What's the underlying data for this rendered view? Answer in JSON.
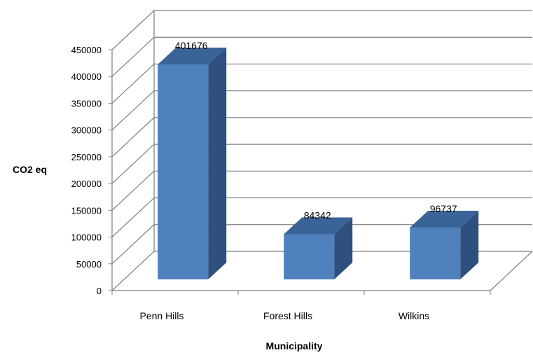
{
  "chart_data": {
    "type": "bar",
    "title": "",
    "xlabel": "Municipality",
    "ylabel": "CO2 eq",
    "categories": [
      "Penn Hills",
      "Forest Hills",
      "Wilkins"
    ],
    "values": [
      401676,
      84342,
      96737
    ],
    "data_labels": [
      "401676",
      "84342",
      "96737"
    ],
    "ylim": [
      0,
      450000
    ],
    "yticks": [
      0,
      50000,
      100000,
      150000,
      200000,
      250000,
      300000,
      350000,
      400000,
      450000
    ],
    "ytick_labels": [
      "0",
      "50000",
      "100000",
      "150000",
      "200000",
      "250000",
      "300000",
      "350000",
      "400000",
      "450000"
    ],
    "grid": true,
    "legend": "none",
    "three_d": true,
    "colors": {
      "front": "#4F81BD",
      "top": "#3A6497",
      "side": "#2F4F7E",
      "grid": "#7F7F7F"
    }
  }
}
